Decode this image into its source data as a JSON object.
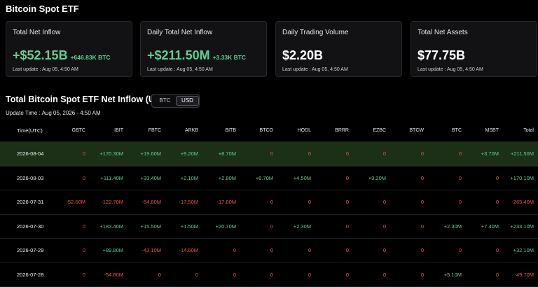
{
  "page_title": "Bitcoin Spot ETF",
  "cards": [
    {
      "title": "Total Net Inflow",
      "value": "+$52.15B",
      "sub": "+646.83K BTC",
      "update": "Last update : Aug 05, 4:50 AM",
      "green": true
    },
    {
      "title": "Daily Total Net Inflow",
      "value": "+$211.50M",
      "sub": "+3.33K BTC",
      "update": "Last update : Aug 05, 4:50 AM",
      "green": true
    },
    {
      "title": "Daily Trading Volume",
      "value": "$2.20B",
      "sub": "",
      "update": "Last update : Aug 05, 4:50 AM",
      "green": false
    },
    {
      "title": "Total Net Assets",
      "value": "$77.75B",
      "sub": "",
      "update": "Last update : Aug 05, 4:50 AM",
      "green": false
    }
  ],
  "section_title": "Total Bitcoin Spot ETF Net Inflow (USD)",
  "toggle": {
    "btc": "BTC",
    "usd": "USD",
    "selected": "USD"
  },
  "update_time": "Update Time : Aug 05, 2026 - 4:50 AM",
  "table": {
    "headers": [
      "Time(UTC)",
      "GBTC",
      "IBIT",
      "FBTC",
      "ARKB",
      "BITB",
      "BTCO",
      "HODL",
      "BRRR",
      "EZBC",
      "BTCW",
      "BTC",
      "MSBT",
      "Total"
    ],
    "rows": [
      {
        "cells": [
          "2026-08-04",
          "0",
          "+170.30M",
          "+19.60M",
          "+9.20M",
          "+8.70M",
          "0",
          "0",
          "0",
          "0",
          "0",
          "0",
          "+3.70M",
          "+211.50M"
        ],
        "highlight": true
      },
      {
        "cells": [
          "2026-08-03",
          "0",
          "+111.40M",
          "+33.40M",
          "+2.10M",
          "+2.80M",
          "+6.70M",
          "+4.50M",
          "0",
          "+9.20M",
          "0",
          "0",
          "0",
          "+170.10M"
        ],
        "highlight": false
      },
      {
        "cells": [
          "2026-07-31",
          "-52.60M",
          "-122.70M",
          "-54.80M",
          "-17.50M",
          "-17.80M",
          "0",
          "0",
          "0",
          "0",
          "0",
          "0",
          "0",
          "-265.40M"
        ],
        "highlight": false
      },
      {
        "cells": [
          "2026-07-30",
          "0",
          "+183.40M",
          "+15.50M",
          "+1.50M",
          "+20.70M",
          "0",
          "+2.30M",
          "0",
          "0",
          "0",
          "+2.30M",
          "+7.40M",
          "+233.10M"
        ],
        "highlight": false
      },
      {
        "cells": [
          "2026-07-29",
          "0",
          "+89.80M",
          "-43.10M",
          "-14.60M",
          "0",
          "0",
          "0",
          "0",
          "0",
          "0",
          "0",
          "0",
          "+32.10M"
        ],
        "highlight": false
      },
      {
        "cells": [
          "2026-07-28",
          "0",
          "-54.80M",
          "0",
          "0",
          "0",
          "0",
          "0",
          "0",
          "0",
          "0",
          "+5.10M",
          "0",
          "-49.70M"
        ],
        "highlight": false
      }
    ]
  }
}
